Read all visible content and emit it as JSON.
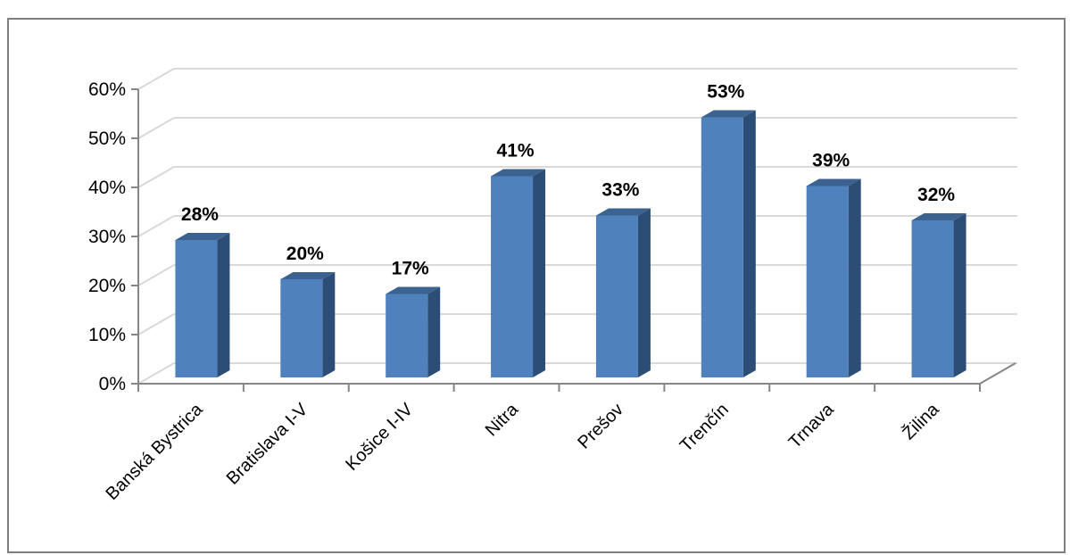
{
  "chart_data": {
    "type": "bar",
    "title": "",
    "xlabel": "",
    "ylabel": "",
    "categories": [
      "Banská Bystrica",
      "Bratislava I-V",
      "Košice I-IV",
      "Nitra",
      "Prešov",
      "Trenčín",
      "Trnava",
      "Žilina"
    ],
    "values": [
      0.28,
      0.2,
      0.17,
      0.41,
      0.33,
      0.53,
      0.39,
      0.32
    ],
    "data_labels": [
      "28%",
      "20%",
      "17%",
      "41%",
      "33%",
      "53%",
      "39%",
      "32%"
    ],
    "ylim": [
      0,
      0.6
    ],
    "yticks": [
      0,
      0.1,
      0.2,
      0.3,
      0.4,
      0.5,
      0.6
    ],
    "ytick_labels": [
      "0%",
      "10%",
      "20%",
      "30%",
      "40%",
      "50%",
      "60%"
    ],
    "grid": true,
    "legend": "none",
    "style": "3d-column"
  },
  "colors": {
    "bar_front": "#4f81bd",
    "bar_side": "#2c4d75",
    "bar_top": "#3c6390",
    "gridline": "#d9d9d9",
    "axis": "#868686"
  }
}
